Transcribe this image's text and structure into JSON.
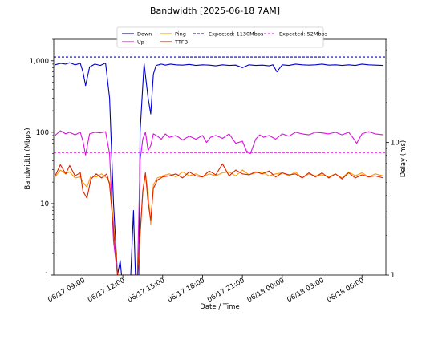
{
  "chart_data": {
    "type": "line",
    "title": "Bandwidth [2025-06-18 7AM]",
    "xlabel": "Date / Time",
    "ylabel_left": "Bandwidth (Mbps)",
    "ylabel_right": "Delay (ms)",
    "left_scale": "log",
    "right_scale": "log",
    "ylim_left": [
      1,
      2000
    ],
    "ylim_right": [
      1,
      60
    ],
    "left_ticks": [
      {
        "v": 1,
        "label": "1"
      },
      {
        "v": 10,
        "label": "10"
      },
      {
        "v": 100,
        "label": "100"
      },
      {
        "v": 1000,
        "label": "1,000"
      }
    ],
    "right_ticks": [
      {
        "v": 1,
        "label": "1"
      },
      {
        "v": 10,
        "label": "10"
      }
    ],
    "xlim_hours": [
      6.8,
      31.8
    ],
    "x_ticks": [
      {
        "h": 9,
        "label": "06/17 09:00"
      },
      {
        "h": 12,
        "label": "06/17 12:00"
      },
      {
        "h": 15,
        "label": "06/17 15:00"
      },
      {
        "h": 18,
        "label": "06/17 18:00"
      },
      {
        "h": 21,
        "label": "06/17 21:00"
      },
      {
        "h": 24,
        "label": "06/18 00:00"
      },
      {
        "h": 27,
        "label": "06/18 03:00"
      },
      {
        "h": 30,
        "label": "06/18 06:00"
      }
    ],
    "legend_position": "top-center",
    "series": [
      {
        "name": "Down",
        "color": "#0000cc",
        "axis": "left",
        "dash": false,
        "x": [
          6.9,
          7.3,
          7.7,
          8.0,
          8.4,
          8.8,
          9.0,
          9.2,
          9.5,
          9.9,
          10.3,
          10.7,
          11.0,
          11.3,
          11.6,
          11.8,
          11.9,
          12.0,
          12.2,
          12.4,
          12.6,
          12.8,
          12.95,
          13.0,
          13.1,
          13.2,
          13.3,
          13.6,
          13.9,
          14.1,
          14.3,
          14.5,
          14.7,
          14.9,
          15.2,
          15.6,
          16.0,
          16.5,
          17.0,
          17.5,
          18.0,
          18.5,
          19.0,
          19.5,
          20.0,
          20.5,
          21.0,
          21.5,
          22.0,
          22.5,
          23.0,
          23.3,
          23.6,
          24.0,
          24.5,
          25.0,
          25.5,
          26.0,
          26.5,
          27.0,
          27.5,
          28.0,
          28.5,
          29.0,
          29.5,
          30.0,
          30.5,
          31.0,
          31.6
        ],
        "y": [
          880,
          920,
          900,
          940,
          880,
          920,
          700,
          450,
          820,
          900,
          860,
          930,
          300,
          10,
          1,
          1.6,
          1,
          1,
          1,
          1,
          1,
          8,
          1,
          1,
          1,
          1,
          100,
          920,
          300,
          180,
          650,
          860,
          880,
          900,
          870,
          900,
          880,
          870,
          890,
          860,
          880,
          870,
          850,
          880,
          860,
          870,
          800,
          880,
          860,
          870,
          850,
          880,
          700,
          880,
          860,
          900,
          880,
          870,
          880,
          900,
          870,
          880,
          860,
          880,
          860,
          900,
          880,
          870,
          860
        ]
      },
      {
        "name": "Up",
        "color": "#dd11dd",
        "axis": "left",
        "dash": false,
        "x": [
          6.9,
          7.3,
          7.7,
          8.0,
          8.4,
          8.8,
          9.0,
          9.2,
          9.5,
          9.9,
          10.3,
          10.7,
          11.0,
          11.3,
          11.6,
          11.8,
          12.0,
          12.4,
          12.8,
          13.1,
          13.3,
          13.5,
          13.7,
          13.9,
          14.1,
          14.3,
          14.6,
          14.9,
          15.2,
          15.5,
          16.0,
          16.5,
          17.0,
          17.5,
          18.0,
          18.3,
          18.6,
          19.0,
          19.5,
          20.0,
          20.5,
          21.0,
          21.3,
          21.6,
          22.0,
          22.3,
          22.6,
          23.0,
          23.5,
          24.0,
          24.5,
          25.0,
          25.5,
          26.0,
          26.5,
          27.0,
          27.5,
          28.0,
          28.5,
          29.0,
          29.3,
          29.6,
          30.0,
          30.5,
          31.0,
          31.6
        ],
        "y": [
          90,
          105,
          95,
          100,
          92,
          100,
          75,
          48,
          95,
          100,
          98,
          102,
          50,
          3,
          1,
          1,
          1,
          1,
          1,
          1,
          40,
          80,
          100,
          55,
          65,
          95,
          88,
          80,
          95,
          85,
          90,
          78,
          88,
          80,
          90,
          72,
          85,
          90,
          82,
          95,
          70,
          75,
          55,
          50,
          80,
          92,
          85,
          90,
          80,
          95,
          88,
          100,
          95,
          92,
          100,
          98,
          95,
          100,
          92,
          100,
          85,
          70,
          95,
          102,
          95,
          92
        ]
      },
      {
        "name": "Expected: 1130Mbps",
        "color": "#0000cc",
        "axis": "left",
        "dash": true,
        "x": [
          6.8,
          31.8
        ],
        "y": [
          1130,
          1130
        ]
      },
      {
        "name": "Expected: 52Mbps",
        "color": "#dd11dd",
        "axis": "left",
        "dash": true,
        "x": [
          6.8,
          31.8
        ],
        "y": [
          52,
          52
        ]
      },
      {
        "name": "Ping",
        "color": "#ff9900",
        "axis": "right",
        "dash": false,
        "x": [
          6.9,
          7.3,
          7.7,
          8.0,
          8.4,
          8.8,
          9.0,
          9.3,
          9.6,
          10.0,
          10.4,
          10.8,
          11.0,
          11.3,
          11.6,
          11.9,
          12.2,
          12.5,
          12.8,
          13.1,
          13.3,
          13.5,
          13.7,
          13.9,
          14.1,
          14.3,
          14.6,
          15.0,
          15.5,
          16.0,
          16.5,
          17.0,
          17.5,
          18.0,
          18.5,
          19.0,
          19.5,
          20.0,
          20.5,
          21.0,
          21.5,
          22.0,
          22.5,
          23.0,
          23.5,
          24.0,
          24.5,
          25.0,
          25.5,
          26.0,
          26.5,
          27.0,
          27.5,
          28.0,
          28.5,
          29.0,
          29.5,
          30.0,
          30.5,
          31.0,
          31.6
        ],
        "y": [
          5.5,
          6.2,
          5.8,
          6.0,
          5.4,
          5.5,
          5.0,
          4.6,
          5.6,
          5.5,
          5.8,
          5.4,
          5.0,
          2.5,
          1,
          1,
          1,
          1,
          1,
          1,
          2.0,
          4.2,
          5.7,
          4.2,
          2.4,
          4.8,
          5.4,
          5.6,
          5.8,
          5.5,
          6.0,
          5.6,
          5.8,
          5.5,
          5.8,
          5.6,
          5.9,
          6.0,
          5.6,
          6.2,
          5.7,
          5.9,
          6.0,
          5.6,
          5.8,
          5.9,
          5.6,
          6.0,
          5.4,
          5.8,
          5.6,
          5.7,
          5.5,
          5.8,
          5.4,
          6.0,
          5.6,
          5.9,
          5.5,
          5.8,
          5.6
        ]
      },
      {
        "name": "TTFB",
        "color": "#dd2200",
        "axis": "right",
        "dash": false,
        "x": [
          6.9,
          7.3,
          7.7,
          8.0,
          8.4,
          8.8,
          9.0,
          9.3,
          9.6,
          10.0,
          10.4,
          10.8,
          11.0,
          11.3,
          11.6,
          11.9,
          12.2,
          12.5,
          12.8,
          13.1,
          13.3,
          13.5,
          13.7,
          13.9,
          14.1,
          14.3,
          14.6,
          15.0,
          15.5,
          16.0,
          16.5,
          17.0,
          17.5,
          18.0,
          18.5,
          19.0,
          19.5,
          20.0,
          20.5,
          21.0,
          21.5,
          22.0,
          22.5,
          23.0,
          23.5,
          24.0,
          24.5,
          25.0,
          25.5,
          26.0,
          26.5,
          27.0,
          27.5,
          28.0,
          28.5,
          29.0,
          29.5,
          30.0,
          30.5,
          31.0,
          31.6
        ],
        "y": [
          5.6,
          6.8,
          5.8,
          6.7,
          5.6,
          5.9,
          4.3,
          3.8,
          5.3,
          5.8,
          5.4,
          5.8,
          4.8,
          2.2,
          1,
          1,
          1,
          1,
          1,
          1,
          2.0,
          4.3,
          5.9,
          3.5,
          2.6,
          4.5,
          5.2,
          5.5,
          5.6,
          5.8,
          5.4,
          6.0,
          5.6,
          5.5,
          6.1,
          5.7,
          6.9,
          5.6,
          6.2,
          5.8,
          5.7,
          6.0,
          5.8,
          6.1,
          5.5,
          5.9,
          5.7,
          5.8,
          5.4,
          5.9,
          5.5,
          5.9,
          5.4,
          5.8,
          5.3,
          5.9,
          5.4,
          5.7,
          5.5,
          5.6,
          5.4
        ]
      }
    ]
  }
}
